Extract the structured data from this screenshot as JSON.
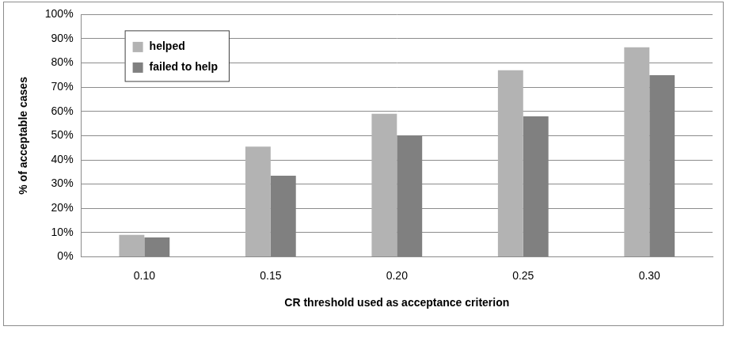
{
  "chart_data": {
    "type": "bar",
    "x_label": "CR threshold used as acceptance criterion",
    "y_label": "% of acceptable cases",
    "categories": [
      "0.10",
      "0.15",
      "0.20",
      "0.25",
      "0.30"
    ],
    "series": [
      {
        "name": "helped",
        "color": "#b3b3b3",
        "values": [
          9,
          45.5,
          59,
          77,
          86.5
        ]
      },
      {
        "name": "failed to help",
        "color": "#808080",
        "values": [
          8,
          33.5,
          50,
          58,
          75
        ]
      }
    ],
    "ylim": [
      0,
      100
    ],
    "yticks": [
      {
        "value": 0,
        "label": "0%"
      },
      {
        "value": 10,
        "label": "10%"
      },
      {
        "value": 20,
        "label": "20%"
      },
      {
        "value": 30,
        "label": "30%"
      },
      {
        "value": 40,
        "label": "40%"
      },
      {
        "value": 50,
        "label": "50%"
      },
      {
        "value": 60,
        "label": "60%"
      },
      {
        "value": 70,
        "label": "70%"
      },
      {
        "value": 80,
        "label": "80%"
      },
      {
        "value": 90,
        "label": "90%"
      },
      {
        "value": 100,
        "label": "100%"
      }
    ],
    "grid": true,
    "legend": "top-left"
  }
}
